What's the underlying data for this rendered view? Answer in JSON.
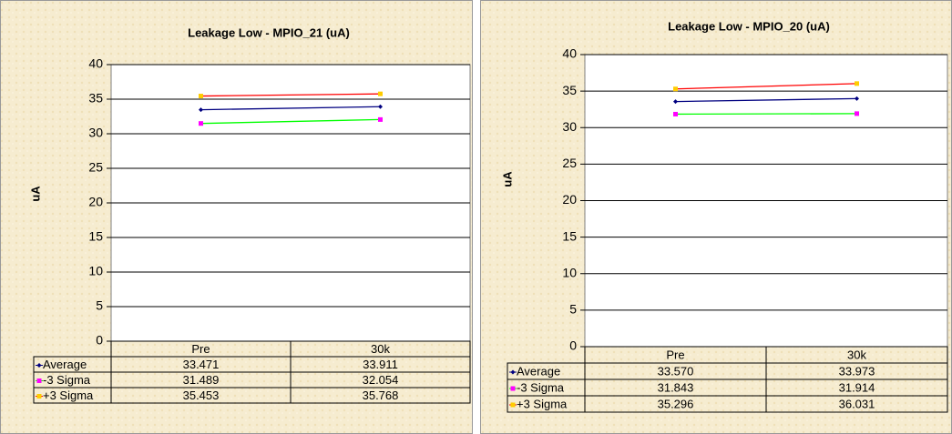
{
  "chart_data": [
    {
      "type": "line",
      "title": "Leakage Low - MPIO_21 (uA)",
      "y_label": "uA",
      "categories": [
        "Pre",
        "30k"
      ],
      "ylim": [
        0,
        40
      ],
      "yticks": [
        0,
        5,
        10,
        15,
        20,
        25,
        30,
        35,
        40
      ],
      "grid": true,
      "series": [
        {
          "name": "Average",
          "color": "#000080",
          "marker_color": "#000080",
          "values": [
            33.471,
            33.911
          ],
          "value_labels": [
            "33.471",
            "33.911"
          ]
        },
        {
          "name": "-3 Sigma",
          "color": "#00ff00",
          "marker_color": "#ff00ff",
          "values": [
            31.489,
            32.054
          ],
          "value_labels": [
            "31.489",
            "32.054"
          ]
        },
        {
          "name": "+3 Sigma",
          "color": "#ff0000",
          "marker_color": "#ffcc00",
          "values": [
            35.453,
            35.768
          ],
          "value_labels": [
            "35.453",
            "35.768"
          ]
        }
      ]
    },
    {
      "type": "line",
      "title": "Leakage Low - MPIO_20 (uA)",
      "y_label": "uA",
      "categories": [
        "Pre",
        "30k"
      ],
      "ylim": [
        0,
        40
      ],
      "yticks": [
        0,
        5,
        10,
        15,
        20,
        25,
        30,
        35,
        40
      ],
      "grid": true,
      "series": [
        {
          "name": "Average",
          "color": "#000080",
          "marker_color": "#000080",
          "values": [
            33.57,
            33.973
          ],
          "value_labels": [
            "33.570",
            "33.973"
          ]
        },
        {
          "name": "-3 Sigma",
          "color": "#00ff00",
          "marker_color": "#ff00ff",
          "values": [
            31.843,
            31.914
          ],
          "value_labels": [
            "31.843",
            "31.914"
          ]
        },
        {
          "name": "+3 Sigma",
          "color": "#ff0000",
          "marker_color": "#ffcc00",
          "values": [
            35.296,
            36.031
          ],
          "value_labels": [
            "35.296",
            "36.031"
          ]
        }
      ]
    }
  ]
}
